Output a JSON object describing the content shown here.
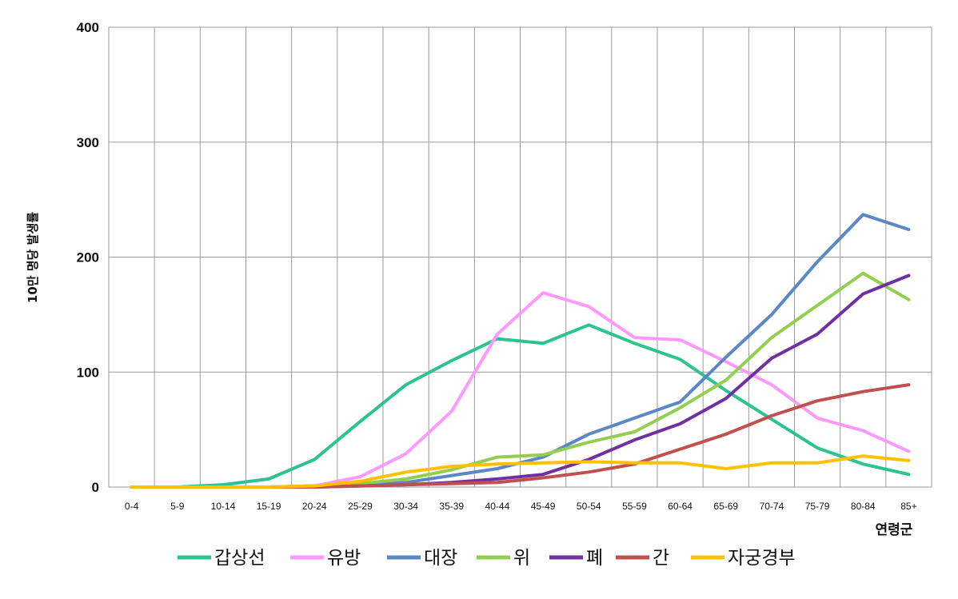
{
  "chart_data": {
    "type": "line",
    "ylabel": "10만 명당 발생률",
    "xlabel": "연령군",
    "ylim": [
      0,
      400
    ],
    "yticks": [
      0,
      100,
      200,
      300,
      400
    ],
    "categories": [
      "0-4",
      "5-9",
      "10-14",
      "15-19",
      "20-24",
      "25-29",
      "30-34",
      "35-39",
      "40-44",
      "45-49",
      "50-54",
      "55-59",
      "60-64",
      "65-69",
      "70-74",
      "75-79",
      "80-84",
      "85+"
    ],
    "grid": "vertical and horizontal",
    "legend_position": "bottom",
    "series": [
      {
        "name": "갑상선",
        "color": "#2bc48e",
        "values": [
          0,
          0,
          2,
          7,
          24,
          57,
          89,
          110,
          129,
          125,
          141,
          125,
          111,
          84,
          59,
          34,
          20,
          11
        ]
      },
      {
        "name": "유방",
        "color": "#ff99ff",
        "values": [
          0,
          0,
          0,
          0,
          1,
          9,
          29,
          66,
          133,
          169,
          157,
          130,
          128,
          109,
          89,
          60,
          49,
          31
        ]
      },
      {
        "name": "대장",
        "color": "#5b88c4",
        "values": [
          0,
          0,
          0,
          0,
          1,
          2,
          4,
          10,
          16,
          26,
          46,
          60,
          74,
          113,
          150,
          196,
          237,
          224
        ]
      },
      {
        "name": "위",
        "color": "#92cf50",
        "values": [
          0,
          0,
          0,
          0,
          1,
          3,
          7,
          15,
          26,
          28,
          39,
          48,
          69,
          93,
          130,
          158,
          186,
          163
        ]
      },
      {
        "name": "폐",
        "color": "#7030a0",
        "values": [
          0,
          0,
          0,
          0,
          0,
          1,
          2,
          4,
          7,
          11,
          24,
          41,
          55,
          77,
          112,
          133,
          168,
          184
        ]
      },
      {
        "name": "간",
        "color": "#c0504d",
        "values": [
          0,
          0,
          0,
          0,
          0,
          1,
          2,
          3,
          4,
          8,
          13,
          20,
          33,
          46,
          62,
          75,
          83,
          89
        ]
      },
      {
        "name": "자궁경부",
        "color": "#ffc000",
        "values": [
          0,
          0,
          0,
          0,
          1,
          5,
          13,
          18,
          20,
          21,
          22,
          21,
          21,
          16,
          21,
          21,
          27,
          23
        ]
      }
    ]
  }
}
